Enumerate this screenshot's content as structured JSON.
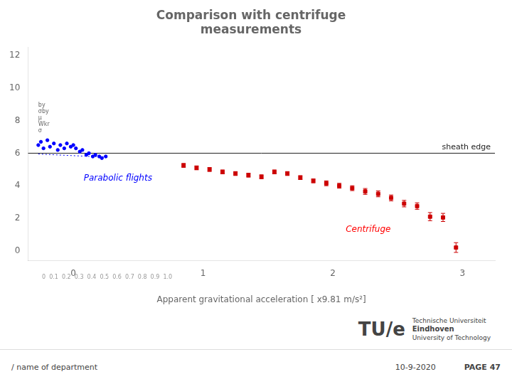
{
  "chart_data": {
    "type": "scatter",
    "title": [
      "Comparison with centrifuge",
      "measurements"
    ],
    "xlabel": "Apparent gravitational acceleration [ x9.81 m/s²]",
    "xlim": [
      -0.35,
      3.25
    ],
    "ylim": [
      -0.6,
      12.5
    ],
    "xticks": [
      0,
      1,
      2,
      3
    ],
    "yticks": [
      0,
      2,
      4,
      6,
      8,
      10,
      12
    ],
    "grid": false,
    "series": [
      {
        "color": "blue",
        "marker": "circle",
        "x": [
          -0.27,
          -0.25,
          -0.23,
          -0.2,
          -0.18,
          -0.15,
          -0.12,
          -0.1,
          -0.07,
          -0.05,
          -0.02,
          0.0,
          0.02,
          0.05,
          0.07,
          0.1,
          0.12,
          0.15,
          0.17,
          0.2,
          0.22,
          0.25
        ],
        "values": [
          6.5,
          6.7,
          6.3,
          6.8,
          6.4,
          6.6,
          6.2,
          6.5,
          6.3,
          6.6,
          6.4,
          6.5,
          6.3,
          6.1,
          6.2,
          5.9,
          6.0,
          5.8,
          5.9,
          5.8,
          5.7,
          5.8
        ]
      },
      {
        "color": "blue",
        "type": "line",
        "line_style": "dotted",
        "x": [
          -0.27,
          0.27
        ],
        "values": [
          5.95,
          5.75
        ]
      },
      {
        "color": "#cc0000",
        "marker": "square",
        "x": [
          0.85,
          0.95,
          1.05,
          1.15,
          1.25,
          1.35,
          1.45,
          1.55,
          1.65,
          1.75,
          1.85,
          1.95,
          2.05,
          2.15,
          2.25,
          2.35,
          2.45,
          2.55,
          2.65,
          2.75,
          2.85,
          2.95
        ],
        "values": [
          5.25,
          5.1,
          5.0,
          4.85,
          4.75,
          4.65,
          4.55,
          4.85,
          4.75,
          4.5,
          4.3,
          4.15,
          4.0,
          3.85,
          3.65,
          3.5,
          3.25,
          2.9,
          2.75,
          2.1,
          2.05,
          0.2
        ],
        "yerr": [
          0.12,
          0.12,
          0.12,
          0.12,
          0.12,
          0.12,
          0.12,
          0.12,
          0.12,
          0.12,
          0.12,
          0.15,
          0.15,
          0.15,
          0.18,
          0.18,
          0.18,
          0.2,
          0.2,
          0.25,
          0.25,
          0.3
        ]
      }
    ],
    "hlines": [
      {
        "y": 6.0,
        "label": "sheath edge"
      }
    ],
    "annotations": [
      {
        "text": "Parabolic flights",
        "x": 0.08,
        "y": 4.7,
        "color": "blue"
      },
      {
        "text": "Centrifuge",
        "x": 2.1,
        "y": 1.55,
        "color": "red"
      },
      {
        "text": [
          "by",
          "σby",
          "μ",
          "Wkr",
          "σ"
        ],
        "x": -0.27,
        "y": 7.05
      },
      {
        "text": "0  0.1  0.2  0.3  0.4  0.5  0.6  0.7  0.8  0.9  1.0"
      }
    ],
    "logo": [
      "TU",
      "/",
      "e",
      "Technische Universiteit",
      "Eindhoven",
      "University of Technology"
    ],
    "footer": [
      "/ name of department",
      "10-9-2020",
      "PAGE 47"
    ]
  }
}
